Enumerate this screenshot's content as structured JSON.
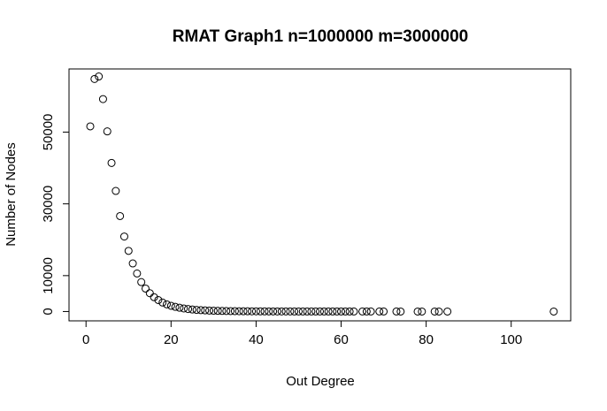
{
  "chart_data": {
    "type": "scatter",
    "title": "RMAT Graph1 n=1000000 m=3000000",
    "xlabel": "Out Degree",
    "ylabel": "Number of Nodes",
    "xlim": [
      -4,
      114
    ],
    "ylim": [
      -2600,
      67600
    ],
    "xticks": [
      0,
      20,
      40,
      60,
      80,
      100
    ],
    "yticks": [
      0,
      10000,
      30000,
      50000
    ],
    "marker": "open-circle",
    "series": [
      {
        "x": [
          1,
          2,
          3,
          4,
          5,
          6,
          7,
          8,
          9,
          10,
          11,
          12,
          13,
          14,
          15,
          16,
          17,
          18,
          19,
          20,
          21,
          22,
          23,
          24,
          25,
          26,
          27,
          28,
          29,
          30,
          31,
          32,
          33,
          34,
          35,
          36,
          37,
          38,
          39,
          40,
          41,
          42,
          43,
          44,
          45,
          46,
          47,
          48,
          49,
          50,
          51,
          52,
          53,
          54,
          55,
          56,
          57,
          58,
          59,
          60,
          61,
          62,
          63,
          65,
          66,
          67,
          69,
          70,
          73,
          74,
          78,
          79,
          82,
          83,
          85,
          110
        ],
        "y": [
          51600,
          64800,
          65500,
          59200,
          50200,
          41400,
          33600,
          26600,
          20900,
          16900,
          13400,
          10600,
          8200,
          6400,
          5100,
          4000,
          3200,
          2500,
          2000,
          1600,
          1300,
          1050,
          850,
          700,
          560,
          460,
          380,
          310,
          260,
          220,
          190,
          160,
          140,
          120,
          100,
          85,
          75,
          65,
          55,
          48,
          42,
          37,
          32,
          28,
          25,
          22,
          19,
          17,
          15,
          13,
          12,
          11,
          10,
          9,
          8,
          7,
          6,
          6,
          5,
          5,
          4,
          4,
          3,
          3,
          3,
          2,
          2,
          2,
          2,
          1,
          1,
          1,
          1,
          1,
          1,
          1
        ]
      }
    ]
  },
  "style": {
    "axis_color": "#000000",
    "marker_color": "#000000",
    "background": "#ffffff"
  }
}
